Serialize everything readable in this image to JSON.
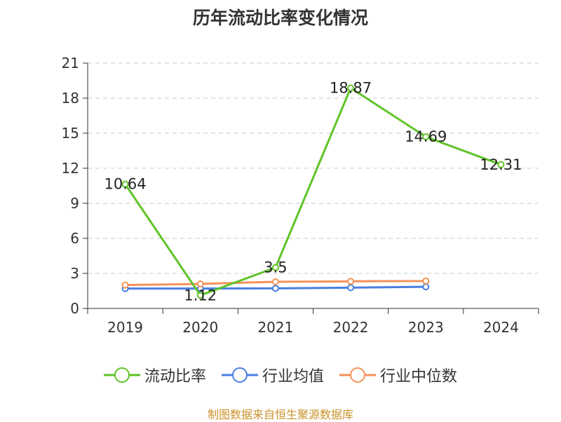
{
  "title": "历年流动比率变化情况",
  "source": "制图数据来自恒生聚源数据库",
  "chart_data": {
    "type": "line",
    "title": "历年流动比率变化情况",
    "categories": [
      "2019",
      "2020",
      "2021",
      "2022",
      "2023",
      "2024"
    ],
    "ylim": [
      0,
      21
    ],
    "yticks": [
      "0",
      "3",
      "6",
      "9",
      "12",
      "15",
      "18",
      "21"
    ],
    "grid": true,
    "legend_position": "bottom",
    "series": [
      {
        "name": "流动比率",
        "color": "#5ec427",
        "values": [
          10.64,
          1.12,
          3.5,
          18.87,
          14.69,
          12.31
        ],
        "labels": [
          "10.64",
          "1.12",
          "3.5",
          "18.87",
          "14.69",
          "12.31"
        ]
      },
      {
        "name": "行业均值",
        "color": "#4a7fe0",
        "values": [
          1.7,
          1.7,
          1.72,
          1.78,
          1.85,
          null
        ]
      },
      {
        "name": "行业中位数",
        "color": "#f5925a",
        "values": [
          2.0,
          2.1,
          2.28,
          2.32,
          2.35,
          null
        ]
      }
    ]
  }
}
